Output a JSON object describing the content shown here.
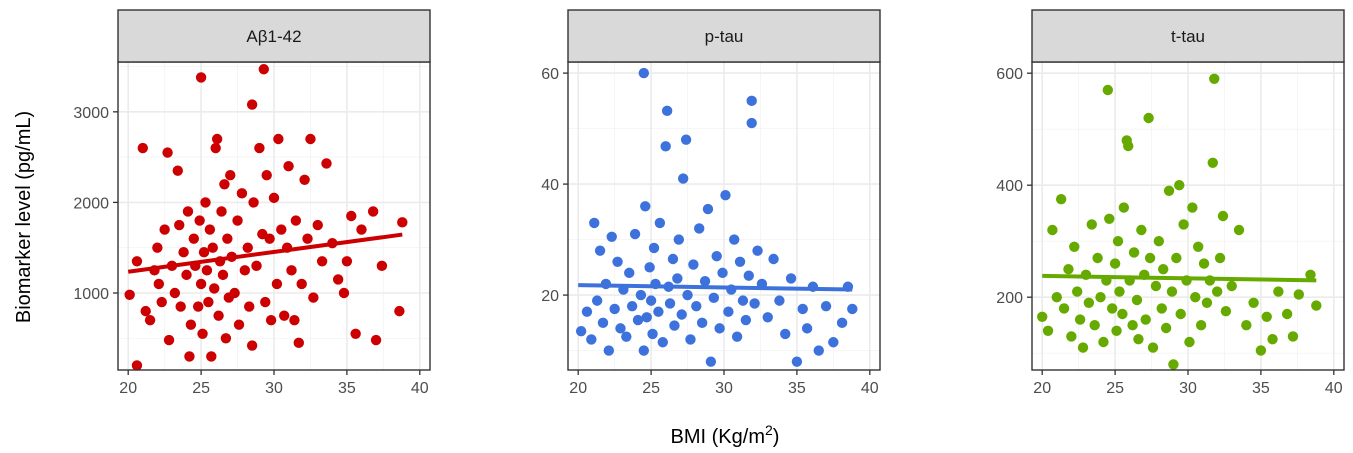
{
  "chart_data": {
    "type": "scatter",
    "ylabel": "Biomarker level (pg/mL)",
    "xlabel_main": "BMI (Kg/m",
    "xlabel_sup": "2",
    "xlabel_close": ")",
    "colors": {
      "abeta": "#cc0000",
      "ptau": "#3d72dc",
      "ttau": "#66aa00"
    },
    "panels": [
      {
        "name": "Aβ1-42",
        "color": "#cc0000",
        "xlim": [
          19.3,
          40.7
        ],
        "ylim": [
          150,
          3550
        ],
        "xticks": [
          20,
          25,
          30,
          35,
          40
        ],
        "yticks": [
          1000,
          2000,
          3000
        ],
        "trend": {
          "x": [
            20,
            38.8
          ],
          "y": [
            1235,
            1645
          ]
        },
        "points": [
          [
            20.6,
            200
          ],
          [
            20.1,
            980
          ],
          [
            20.6,
            1350
          ],
          [
            21.0,
            2600
          ],
          [
            21.2,
            800
          ],
          [
            21.5,
            700
          ],
          [
            21.8,
            1250
          ],
          [
            22.0,
            1500
          ],
          [
            22.1,
            1100
          ],
          [
            22.3,
            900
          ],
          [
            22.5,
            1700
          ],
          [
            22.7,
            2550
          ],
          [
            22.8,
            480
          ],
          [
            23.0,
            1300
          ],
          [
            23.2,
            1000
          ],
          [
            23.4,
            2350
          ],
          [
            23.5,
            1750
          ],
          [
            23.6,
            850
          ],
          [
            23.8,
            1450
          ],
          [
            24.0,
            1200
          ],
          [
            24.1,
            1900
          ],
          [
            24.2,
            300
          ],
          [
            24.3,
            650
          ],
          [
            24.5,
            1600
          ],
          [
            24.6,
            1300
          ],
          [
            24.8,
            850
          ],
          [
            24.9,
            1800
          ],
          [
            25.0,
            1100
          ],
          [
            25.0,
            3380
          ],
          [
            25.1,
            550
          ],
          [
            25.2,
            1450
          ],
          [
            25.3,
            2000
          ],
          [
            25.4,
            1250
          ],
          [
            25.5,
            900
          ],
          [
            25.6,
            1700
          ],
          [
            25.7,
            300
          ],
          [
            25.8,
            1500
          ],
          [
            25.9,
            1050
          ],
          [
            26.0,
            2600
          ],
          [
            26.1,
            2700
          ],
          [
            26.2,
            750
          ],
          [
            26.3,
            1350
          ],
          [
            26.4,
            1900
          ],
          [
            26.5,
            1200
          ],
          [
            26.6,
            2200
          ],
          [
            26.7,
            500
          ],
          [
            26.8,
            1600
          ],
          [
            26.9,
            950
          ],
          [
            27.0,
            2300
          ],
          [
            27.1,
            1400
          ],
          [
            27.3,
            1000
          ],
          [
            27.5,
            1800
          ],
          [
            27.6,
            650
          ],
          [
            27.8,
            2100
          ],
          [
            28.0,
            1250
          ],
          [
            28.2,
            1500
          ],
          [
            28.3,
            850
          ],
          [
            28.5,
            3080
          ],
          [
            28.5,
            420
          ],
          [
            28.6,
            2000
          ],
          [
            28.8,
            1300
          ],
          [
            29.0,
            2600
          ],
          [
            29.2,
            1650
          ],
          [
            29.3,
            3470
          ],
          [
            29.4,
            900
          ],
          [
            29.5,
            2300
          ],
          [
            29.7,
            1600
          ],
          [
            29.8,
            700
          ],
          [
            30.0,
            2050
          ],
          [
            30.2,
            1100
          ],
          [
            30.3,
            2700
          ],
          [
            30.5,
            1700
          ],
          [
            30.7,
            750
          ],
          [
            30.9,
            1500
          ],
          [
            31.0,
            2400
          ],
          [
            31.2,
            1250
          ],
          [
            31.4,
            700
          ],
          [
            31.5,
            1800
          ],
          [
            31.7,
            450
          ],
          [
            31.9,
            1100
          ],
          [
            32.1,
            2250
          ],
          [
            32.3,
            1600
          ],
          [
            32.5,
            2700
          ],
          [
            32.7,
            950
          ],
          [
            33.0,
            1750
          ],
          [
            33.3,
            1350
          ],
          [
            33.6,
            2430
          ],
          [
            34.0,
            1550
          ],
          [
            34.4,
            1150
          ],
          [
            34.8,
            1000
          ],
          [
            35.0,
            1350
          ],
          [
            35.3,
            1850
          ],
          [
            35.6,
            550
          ],
          [
            36.0,
            1700
          ],
          [
            36.8,
            1900
          ],
          [
            37.0,
            480
          ],
          [
            37.4,
            1300
          ],
          [
            38.6,
            800
          ],
          [
            38.8,
            1780
          ]
        ]
      },
      {
        "name": "p-tau",
        "color": "#3d72dc",
        "xlim": [
          19.3,
          40.7
        ],
        "ylim": [
          6.5,
          62
        ],
        "xticks": [
          20,
          25,
          30,
          35,
          40
        ],
        "yticks": [
          20,
          40,
          60
        ],
        "trend": {
          "x": [
            20,
            38.8
          ],
          "y": [
            21.8,
            21.0
          ]
        },
        "points": [
          [
            20.2,
            13.5
          ],
          [
            20.6,
            17.0
          ],
          [
            20.9,
            12.0
          ],
          [
            21.1,
            33.0
          ],
          [
            21.3,
            19.0
          ],
          [
            21.5,
            28.0
          ],
          [
            21.7,
            15.0
          ],
          [
            21.9,
            22.0
          ],
          [
            22.1,
            10.0
          ],
          [
            22.3,
            30.5
          ],
          [
            22.5,
            17.5
          ],
          [
            22.7,
            26.0
          ],
          [
            22.9,
            14.0
          ],
          [
            23.1,
            21.0
          ],
          [
            23.3,
            12.5
          ],
          [
            23.5,
            24.0
          ],
          [
            23.7,
            18.0
          ],
          [
            23.9,
            31.0
          ],
          [
            24.1,
            15.5
          ],
          [
            24.3,
            20.0
          ],
          [
            24.5,
            10.0
          ],
          [
            24.5,
            60.0
          ],
          [
            24.6,
            36.0
          ],
          [
            24.7,
            16.0
          ],
          [
            24.9,
            25.0
          ],
          [
            25.0,
            19.0
          ],
          [
            25.1,
            13.0
          ],
          [
            25.2,
            28.5
          ],
          [
            25.3,
            22.0
          ],
          [
            25.5,
            17.0
          ],
          [
            25.6,
            33.0
          ],
          [
            25.8,
            11.5
          ],
          [
            26.0,
            46.8
          ],
          [
            26.1,
            53.2
          ],
          [
            26.2,
            21.5
          ],
          [
            26.3,
            18.5
          ],
          [
            26.5,
            26.5
          ],
          [
            26.6,
            14.5
          ],
          [
            26.8,
            23.0
          ],
          [
            26.9,
            30.0
          ],
          [
            27.1,
            16.5
          ],
          [
            27.2,
            41.0
          ],
          [
            27.4,
            48.0
          ],
          [
            27.5,
            20.0
          ],
          [
            27.7,
            12.0
          ],
          [
            27.9,
            25.5
          ],
          [
            28.1,
            18.0
          ],
          [
            28.3,
            32.0
          ],
          [
            28.5,
            15.0
          ],
          [
            28.7,
            22.5
          ],
          [
            28.9,
            35.5
          ],
          [
            29.1,
            8.0
          ],
          [
            29.3,
            19.5
          ],
          [
            29.5,
            27.0
          ],
          [
            29.7,
            14.0
          ],
          [
            29.9,
            24.0
          ],
          [
            30.1,
            38.0
          ],
          [
            30.3,
            17.0
          ],
          [
            30.5,
            21.0
          ],
          [
            30.7,
            30.0
          ],
          [
            30.9,
            12.5
          ],
          [
            31.1,
            26.0
          ],
          [
            31.3,
            19.0
          ],
          [
            31.5,
            15.5
          ],
          [
            31.7,
            23.5
          ],
          [
            31.9,
            55.0
          ],
          [
            31.9,
            51.0
          ],
          [
            32.1,
            18.5
          ],
          [
            32.3,
            28.0
          ],
          [
            32.6,
            22.0
          ],
          [
            33.0,
            16.0
          ],
          [
            33.4,
            26.5
          ],
          [
            33.8,
            19.0
          ],
          [
            34.2,
            13.0
          ],
          [
            34.6,
            23.0
          ],
          [
            35.0,
            8.0
          ],
          [
            35.4,
            17.5
          ],
          [
            35.7,
            14.0
          ],
          [
            36.1,
            21.5
          ],
          [
            36.5,
            10.0
          ],
          [
            37.0,
            18.0
          ],
          [
            37.5,
            11.5
          ],
          [
            38.1,
            15.0
          ],
          [
            38.8,
            17.5
          ],
          [
            38.5,
            21.5
          ]
        ]
      },
      {
        "name": "t-tau",
        "color": "#66aa00",
        "xlim": [
          19.3,
          40.7
        ],
        "ylim": [
          70,
          620
        ],
        "xticks": [
          20,
          25,
          30,
          35,
          40
        ],
        "yticks": [
          200,
          400,
          600
        ],
        "trend": {
          "x": [
            20,
            38.8
          ],
          "y": [
            238,
            230
          ]
        },
        "points": [
          [
            20.0,
            165
          ],
          [
            20.4,
            140
          ],
          [
            20.7,
            320
          ],
          [
            21.0,
            200
          ],
          [
            21.3,
            375
          ],
          [
            21.5,
            180
          ],
          [
            21.8,
            250
          ],
          [
            22.0,
            130
          ],
          [
            22.2,
            290
          ],
          [
            22.4,
            210
          ],
          [
            22.6,
            160
          ],
          [
            22.8,
            110
          ],
          [
            23.0,
            240
          ],
          [
            23.2,
            190
          ],
          [
            23.4,
            330
          ],
          [
            23.6,
            150
          ],
          [
            23.8,
            270
          ],
          [
            24.0,
            200
          ],
          [
            24.2,
            120
          ],
          [
            24.4,
            230
          ],
          [
            24.5,
            570
          ],
          [
            24.6,
            340
          ],
          [
            24.8,
            180
          ],
          [
            25.0,
            260
          ],
          [
            25.1,
            140
          ],
          [
            25.2,
            300
          ],
          [
            25.3,
            210
          ],
          [
            25.5,
            170
          ],
          [
            25.6,
            360
          ],
          [
            25.8,
            480
          ],
          [
            25.9,
            470
          ],
          [
            26.0,
            230
          ],
          [
            26.2,
            150
          ],
          [
            26.3,
            280
          ],
          [
            26.5,
            195
          ],
          [
            26.6,
            125
          ],
          [
            26.8,
            320
          ],
          [
            27.0,
            240
          ],
          [
            27.1,
            160
          ],
          [
            27.3,
            520
          ],
          [
            27.4,
            270
          ],
          [
            27.6,
            110
          ],
          [
            27.8,
            220
          ],
          [
            28.0,
            300
          ],
          [
            28.2,
            180
          ],
          [
            28.3,
            250
          ],
          [
            28.5,
            145
          ],
          [
            28.7,
            390
          ],
          [
            28.9,
            210
          ],
          [
            29.0,
            80
          ],
          [
            29.2,
            270
          ],
          [
            29.4,
            400
          ],
          [
            29.5,
            170
          ],
          [
            29.7,
            330
          ],
          [
            29.9,
            230
          ],
          [
            30.1,
            120
          ],
          [
            30.3,
            360
          ],
          [
            30.5,
            200
          ],
          [
            30.7,
            290
          ],
          [
            30.9,
            150
          ],
          [
            31.1,
            260
          ],
          [
            31.3,
            190
          ],
          [
            31.5,
            230
          ],
          [
            31.7,
            440
          ],
          [
            31.8,
            590
          ],
          [
            32.0,
            210
          ],
          [
            32.2,
            270
          ],
          [
            32.4,
            345
          ],
          [
            32.6,
            175
          ],
          [
            33.0,
            220
          ],
          [
            33.5,
            320
          ],
          [
            34.0,
            150
          ],
          [
            34.5,
            190
          ],
          [
            35.0,
            105
          ],
          [
            35.4,
            165
          ],
          [
            35.8,
            125
          ],
          [
            36.2,
            210
          ],
          [
            36.8,
            170
          ],
          [
            37.2,
            130
          ],
          [
            37.6,
            205
          ],
          [
            38.4,
            240
          ],
          [
            38.8,
            185
          ]
        ]
      }
    ]
  }
}
